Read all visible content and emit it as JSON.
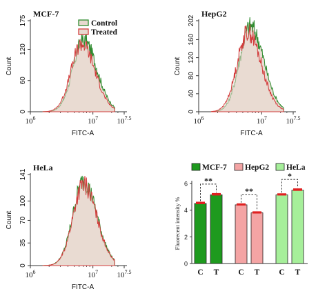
{
  "chart_data": [
    {
      "type": "area",
      "panel": "MCF-7",
      "title": "MCF-7",
      "xlabel": "FITC-A",
      "ylabel": "Count",
      "x_scale": "log",
      "x_tick_labels": [
        "10^6",
        "10^7",
        "10^7.5"
      ],
      "y_ticks": [
        "0",
        "60",
        "120",
        "175"
      ],
      "ylim": [
        0,
        175
      ],
      "legend": {
        "position": "top-right",
        "entries": [
          "Control",
          "Treated"
        ]
      },
      "series": [
        {
          "name": "Control",
          "color": "#2e8b2e",
          "peak_x": 6.85,
          "peak_y": 140
        },
        {
          "name": "Treated",
          "color": "#d23c3c",
          "peak_x": 6.82,
          "peak_y": 133
        }
      ]
    },
    {
      "type": "area",
      "panel": "HepG2",
      "title": "HepG2",
      "xlabel": "FITC-A",
      "ylabel": "Count",
      "x_scale": "log",
      "x_tick_labels": [
        "10^6",
        "10^7",
        "10^7.5"
      ],
      "y_ticks": [
        "0",
        "40",
        "80",
        "120",
        "160",
        "202"
      ],
      "ylim": [
        0,
        202
      ],
      "series": [
        {
          "name": "Control",
          "color": "#2e8b2e",
          "peak_x": 6.82,
          "peak_y": 194
        },
        {
          "name": "Treated",
          "color": "#d23c3c",
          "peak_x": 6.78,
          "peak_y": 180
        }
      ]
    },
    {
      "type": "area",
      "panel": "HeLa",
      "title": "HeLa",
      "xlabel": "FITC-A",
      "ylabel": "Count",
      "x_scale": "log",
      "x_tick_labels": [
        "10^6",
        "10^7",
        "10^7.5"
      ],
      "y_ticks": [
        "0",
        "35",
        "70",
        "100",
        "141"
      ],
      "ylim": [
        0,
        141
      ],
      "series": [
        {
          "name": "Control",
          "color": "#2e8b2e",
          "peak_x": 6.85,
          "peak_y": 133
        },
        {
          "name": "Treated",
          "color": "#d23c3c",
          "peak_x": 6.85,
          "peak_y": 128
        }
      ]
    },
    {
      "type": "bar",
      "panel": "summary",
      "ylabel": "Fluorecent intensity %",
      "ylim": [
        0,
        6
      ],
      "y_ticks": [
        "0",
        "2",
        "4",
        "6"
      ],
      "legend": {
        "position": "top",
        "entries": [
          "MCF-7",
          "HepG2",
          "HeLa"
        ]
      },
      "groups": [
        {
          "name": "MCF-7",
          "color": "#1e9a1e",
          "categories": [
            "C",
            "T"
          ],
          "values": [
            4.5,
            5.15
          ],
          "errors": [
            0.08,
            0.08
          ],
          "significance": "**"
        },
        {
          "name": "HepG2",
          "color": "#f4a4a4",
          "categories": [
            "C",
            "T"
          ],
          "values": [
            4.4,
            3.8
          ],
          "errors": [
            0.06,
            0.06
          ],
          "significance": "**"
        },
        {
          "name": "HeLa",
          "color": "#a6ef9a",
          "categories": [
            "C",
            "T"
          ],
          "values": [
            5.15,
            5.5
          ],
          "errors": [
            0.06,
            0.08
          ],
          "significance": "*"
        }
      ]
    }
  ]
}
